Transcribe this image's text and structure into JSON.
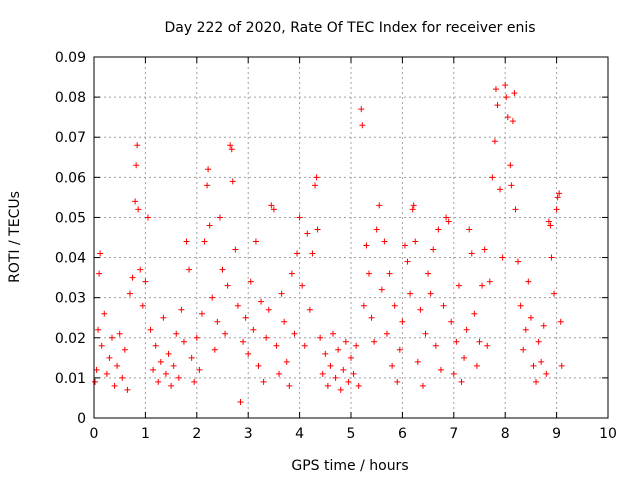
{
  "chart_data": {
    "type": "scatter",
    "title": "Day 222 of 2020, Rate Of TEC Index for receiver enis",
    "xlabel": "GPS time / hours",
    "ylabel": "ROTI / TECUs",
    "xlim": [
      0,
      10
    ],
    "ylim": [
      0,
      0.09
    ],
    "xticks": [
      "0",
      "1",
      "2",
      "3",
      "4",
      "5",
      "6",
      "7",
      "8",
      "9",
      "10"
    ],
    "yticks": [
      "0",
      "0.01",
      "0.02",
      "0.03",
      "0.04",
      "0.05",
      "0.06",
      "0.07",
      "0.08",
      "0.09"
    ],
    "grid": true,
    "marker": "plus",
    "color": "#ff0000",
    "series": [
      {
        "points": [
          [
            0.02,
            0.009
          ],
          [
            0.05,
            0.012
          ],
          [
            0.08,
            0.022
          ],
          [
            0.1,
            0.036
          ],
          [
            0.12,
            0.041
          ],
          [
            0.15,
            0.018
          ],
          [
            0.2,
            0.026
          ],
          [
            0.25,
            0.011
          ],
          [
            0.3,
            0.015
          ],
          [
            0.35,
            0.02
          ],
          [
            0.4,
            0.008
          ],
          [
            0.45,
            0.013
          ],
          [
            0.5,
            0.021
          ],
          [
            0.55,
            0.01
          ],
          [
            0.6,
            0.017
          ],
          [
            0.65,
            0.007
          ],
          [
            0.7,
            0.031
          ],
          [
            0.75,
            0.035
          ],
          [
            0.8,
            0.054
          ],
          [
            0.82,
            0.063
          ],
          [
            0.84,
            0.068
          ],
          [
            0.86,
            0.052
          ],
          [
            0.9,
            0.037
          ],
          [
            0.95,
            0.028
          ],
          [
            1.0,
            0.034
          ],
          [
            1.05,
            0.05
          ],
          [
            1.1,
            0.022
          ],
          [
            1.15,
            0.012
          ],
          [
            1.2,
            0.018
          ],
          [
            1.25,
            0.009
          ],
          [
            1.3,
            0.014
          ],
          [
            1.35,
            0.025
          ],
          [
            1.4,
            0.011
          ],
          [
            1.45,
            0.016
          ],
          [
            1.5,
            0.008
          ],
          [
            1.55,
            0.013
          ],
          [
            1.6,
            0.021
          ],
          [
            1.65,
            0.01
          ],
          [
            1.7,
            0.027
          ],
          [
            1.75,
            0.019
          ],
          [
            1.8,
            0.044
          ],
          [
            1.85,
            0.037
          ],
          [
            1.9,
            0.015
          ],
          [
            1.95,
            0.009
          ],
          [
            2.0,
            0.02
          ],
          [
            2.05,
            0.012
          ],
          [
            2.1,
            0.026
          ],
          [
            2.15,
            0.044
          ],
          [
            2.2,
            0.058
          ],
          [
            2.22,
            0.062
          ],
          [
            2.25,
            0.048
          ],
          [
            2.3,
            0.03
          ],
          [
            2.35,
            0.017
          ],
          [
            2.4,
            0.024
          ],
          [
            2.45,
            0.05
          ],
          [
            2.5,
            0.037
          ],
          [
            2.55,
            0.021
          ],
          [
            2.6,
            0.033
          ],
          [
            2.65,
            0.068
          ],
          [
            2.68,
            0.067
          ],
          [
            2.7,
            0.059
          ],
          [
            2.75,
            0.042
          ],
          [
            2.8,
            0.028
          ],
          [
            2.85,
            0.004
          ],
          [
            2.9,
            0.019
          ],
          [
            2.95,
            0.025
          ],
          [
            3.0,
            0.016
          ],
          [
            3.05,
            0.034
          ],
          [
            3.1,
            0.022
          ],
          [
            3.15,
            0.044
          ],
          [
            3.2,
            0.013
          ],
          [
            3.25,
            0.029
          ],
          [
            3.3,
            0.009
          ],
          [
            3.35,
            0.02
          ],
          [
            3.4,
            0.027
          ],
          [
            3.45,
            0.053
          ],
          [
            3.5,
            0.052
          ],
          [
            3.55,
            0.018
          ],
          [
            3.6,
            0.011
          ],
          [
            3.65,
            0.031
          ],
          [
            3.7,
            0.024
          ],
          [
            3.75,
            0.014
          ],
          [
            3.8,
            0.008
          ],
          [
            3.85,
            0.036
          ],
          [
            3.9,
            0.021
          ],
          [
            3.95,
            0.041
          ],
          [
            4.0,
            0.05
          ],
          [
            4.05,
            0.033
          ],
          [
            4.1,
            0.018
          ],
          [
            4.15,
            0.046
          ],
          [
            4.2,
            0.027
          ],
          [
            4.25,
            0.041
          ],
          [
            4.3,
            0.058
          ],
          [
            4.33,
            0.06
          ],
          [
            4.35,
            0.047
          ],
          [
            4.4,
            0.02
          ],
          [
            4.45,
            0.011
          ],
          [
            4.5,
            0.016
          ],
          [
            4.55,
            0.008
          ],
          [
            4.6,
            0.013
          ],
          [
            4.65,
            0.021
          ],
          [
            4.7,
            0.01
          ],
          [
            4.75,
            0.017
          ],
          [
            4.8,
            0.007
          ],
          [
            4.85,
            0.012
          ],
          [
            4.9,
            0.019
          ],
          [
            4.95,
            0.009
          ],
          [
            5.0,
            0.015
          ],
          [
            5.05,
            0.011
          ],
          [
            5.1,
            0.018
          ],
          [
            5.15,
            0.008
          ],
          [
            5.2,
            0.077
          ],
          [
            5.22,
            0.073
          ],
          [
            5.25,
            0.028
          ],
          [
            5.3,
            0.043
          ],
          [
            5.35,
            0.036
          ],
          [
            5.4,
            0.025
          ],
          [
            5.45,
            0.019
          ],
          [
            5.5,
            0.047
          ],
          [
            5.55,
            0.053
          ],
          [
            5.6,
            0.032
          ],
          [
            5.65,
            0.044
          ],
          [
            5.7,
            0.021
          ],
          [
            5.75,
            0.036
          ],
          [
            5.8,
            0.013
          ],
          [
            5.85,
            0.028
          ],
          [
            5.9,
            0.009
          ],
          [
            5.95,
            0.017
          ],
          [
            6.0,
            0.024
          ],
          [
            6.05,
            0.043
          ],
          [
            6.1,
            0.039
          ],
          [
            6.15,
            0.031
          ],
          [
            6.2,
            0.052
          ],
          [
            6.22,
            0.053
          ],
          [
            6.25,
            0.044
          ],
          [
            6.3,
            0.014
          ],
          [
            6.35,
            0.027
          ],
          [
            6.4,
            0.008
          ],
          [
            6.45,
            0.021
          ],
          [
            6.5,
            0.036
          ],
          [
            6.55,
            0.031
          ],
          [
            6.6,
            0.042
          ],
          [
            6.65,
            0.018
          ],
          [
            6.7,
            0.047
          ],
          [
            6.75,
            0.012
          ],
          [
            6.8,
            0.028
          ],
          [
            6.85,
            0.05
          ],
          [
            6.9,
            0.049
          ],
          [
            6.95,
            0.024
          ],
          [
            7.0,
            0.011
          ],
          [
            7.05,
            0.019
          ],
          [
            7.1,
            0.033
          ],
          [
            7.15,
            0.009
          ],
          [
            7.2,
            0.015
          ],
          [
            7.25,
            0.022
          ],
          [
            7.3,
            0.047
          ],
          [
            7.35,
            0.041
          ],
          [
            7.4,
            0.026
          ],
          [
            7.45,
            0.013
          ],
          [
            7.5,
            0.019
          ],
          [
            7.55,
            0.033
          ],
          [
            7.6,
            0.042
          ],
          [
            7.65,
            0.018
          ],
          [
            7.7,
            0.034
          ],
          [
            7.75,
            0.06
          ],
          [
            7.8,
            0.069
          ],
          [
            7.82,
            0.082
          ],
          [
            7.85,
            0.078
          ],
          [
            7.9,
            0.057
          ],
          [
            7.95,
            0.04
          ],
          [
            8.0,
            0.083
          ],
          [
            8.02,
            0.08
          ],
          [
            8.05,
            0.075
          ],
          [
            8.1,
            0.063
          ],
          [
            8.12,
            0.058
          ],
          [
            8.15,
            0.074
          ],
          [
            8.18,
            0.081
          ],
          [
            8.2,
            0.052
          ],
          [
            8.25,
            0.039
          ],
          [
            8.3,
            0.028
          ],
          [
            8.35,
            0.017
          ],
          [
            8.4,
            0.022
          ],
          [
            8.45,
            0.034
          ],
          [
            8.5,
            0.025
          ],
          [
            8.55,
            0.013
          ],
          [
            8.6,
            0.009
          ],
          [
            8.65,
            0.019
          ],
          [
            8.7,
            0.014
          ],
          [
            8.75,
            0.023
          ],
          [
            8.8,
            0.011
          ],
          [
            8.85,
            0.049
          ],
          [
            8.88,
            0.048
          ],
          [
            8.9,
            0.04
          ],
          [
            8.95,
            0.031
          ],
          [
            9.0,
            0.052
          ],
          [
            9.02,
            0.055
          ],
          [
            9.05,
            0.056
          ],
          [
            9.08,
            0.024
          ],
          [
            9.1,
            0.013
          ]
        ]
      }
    ]
  }
}
